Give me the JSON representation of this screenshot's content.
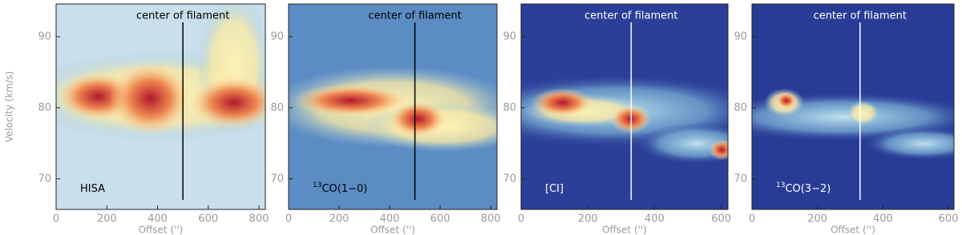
{
  "chart_data": [
    {
      "type": "heatmap",
      "label": "HISA",
      "xlabel": "Offset ('')",
      "ylabel": "Velocity (km/s)",
      "annotation": {
        "text": "center of filament",
        "x": 500
      },
      "line_color": "#000000",
      "xlim": [
        0,
        825
      ],
      "xticks": [
        0,
        200,
        400,
        600,
        800
      ],
      "ylim": [
        65.7,
        94.6
      ],
      "yticks": [
        70,
        80,
        90
      ]
    },
    {
      "type": "heatmap",
      "label_sup": "13",
      "label": "CO(1−0)",
      "xlabel": "Offset ('')",
      "annotation": {
        "text": "center of filament",
        "x": 500
      },
      "line_color": "#000000",
      "xlim": [
        0,
        825
      ],
      "xticks": [
        0,
        200,
        400,
        600,
        800
      ],
      "ylim": [
        65.7,
        94.6
      ],
      "yticks": [
        70,
        80,
        90
      ]
    },
    {
      "type": "heatmap",
      "label": "[CI]",
      "xlabel": "Offset ('')",
      "annotation": {
        "text": "center of filament",
        "x": 330
      },
      "line_color": "#ffffff",
      "xlim": [
        0,
        620
      ],
      "xticks": [
        0,
        200,
        400,
        600
      ],
      "ylim": [
        65.7,
        94.6
      ],
      "yticks": [
        70,
        80,
        90
      ]
    },
    {
      "type": "heatmap",
      "label_sup": "13",
      "label": "CO(3−2)",
      "xlabel": "Offset ('')",
      "annotation": {
        "text": "center of filament",
        "x": 330
      },
      "line_color": "#ffffff",
      "xlim": [
        0,
        617
      ],
      "xticks": [
        0,
        200,
        400,
        600
      ],
      "ylim": [
        65.7,
        94.6
      ],
      "yticks": [
        70,
        80,
        90
      ]
    }
  ]
}
